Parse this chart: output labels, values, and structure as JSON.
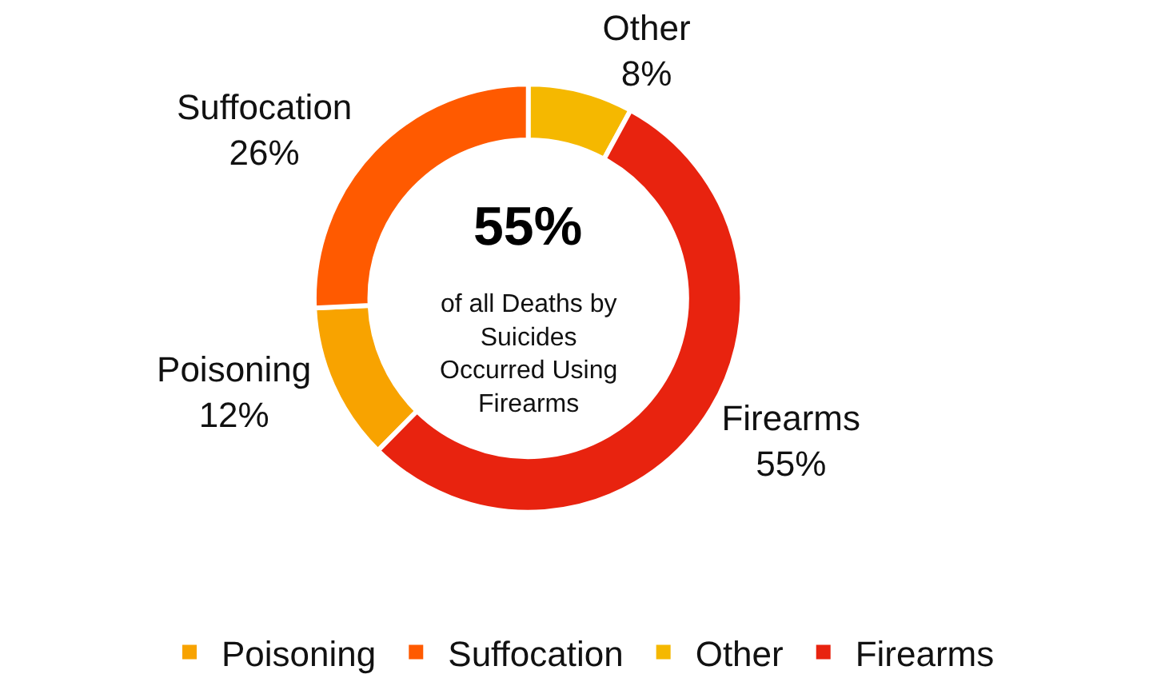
{
  "chart_data": {
    "type": "donut",
    "categories": [
      "Poisoning",
      "Suffocation",
      "Other",
      "Firearms"
    ],
    "values": [
      12,
      26,
      8,
      55
    ],
    "value_labels": [
      "12%",
      "26%",
      "8%",
      "55%"
    ],
    "colors": [
      "#f8a300",
      "#ff5a00",
      "#f5b800",
      "#e8230f"
    ],
    "annotations": [
      "55%",
      "of all Deaths by Suicides Occurred Using Firearms"
    ],
    "legend": "bottom"
  }
}
